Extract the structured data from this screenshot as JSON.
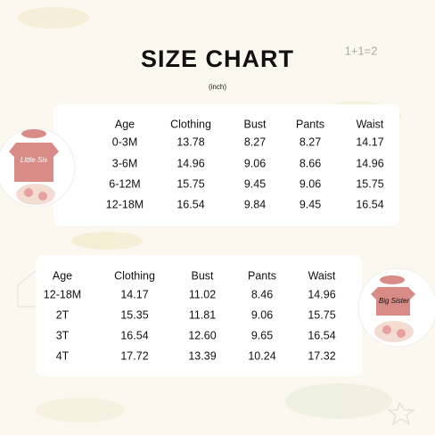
{
  "header": {
    "title": "SIZE CHART",
    "subtitle": "(inch)",
    "doodle": "1+1=2"
  },
  "products": [
    {
      "print": "Little Sis"
    },
    {
      "print": "Big Sister"
    }
  ],
  "tables": [
    {
      "columns": [
        "Age",
        "Clothing",
        "Bust",
        "Pants",
        "Waist"
      ],
      "rows": [
        [
          "0-3M",
          "13.78",
          "8.27",
          "8.27",
          "14.17"
        ],
        [
          "3-6M",
          "14.96",
          "9.06",
          "8.66",
          "14.96"
        ],
        [
          "6-12M",
          "15.75",
          "9.45",
          "9.06",
          "15.75"
        ],
        [
          "12-18M",
          "16.54",
          "9.84",
          "9.45",
          "16.54"
        ]
      ]
    },
    {
      "columns": [
        "Age",
        "Clothing",
        "Bust",
        "Pants",
        "Waist"
      ],
      "rows": [
        [
          "12-18M",
          "14.17",
          "11.02",
          "8.46",
          "14.96"
        ],
        [
          "2T",
          "15.35",
          "11.81",
          "9.06",
          "15.75"
        ],
        [
          "3T",
          "16.54",
          "12.60",
          "9.65",
          "16.54"
        ],
        [
          "4T",
          "17.72",
          "13.39",
          "10.24",
          "17.32"
        ]
      ]
    }
  ]
}
